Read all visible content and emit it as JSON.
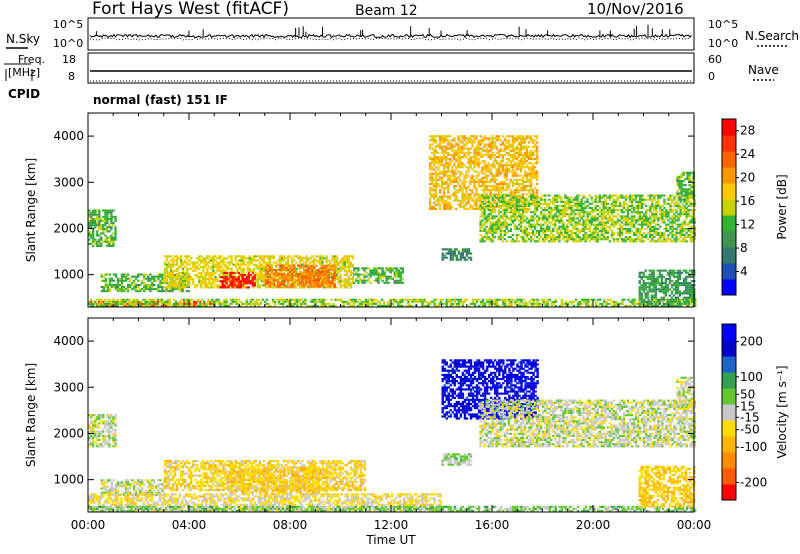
{
  "header": {
    "title": "Fort Hays West (fitACF)",
    "beam": "Beam 12",
    "date": "10/Nov/2016"
  },
  "noise_panel": {
    "left_label": "N.Sky",
    "right_label": "N.Search",
    "left_ticks": [
      "10^5",
      "10^0"
    ],
    "right_ticks": [
      "10^5",
      "10^0"
    ]
  },
  "freq_panel": {
    "left_label_1": "Freq.",
    "left_label_2": "[MHz]",
    "right_label": "Nave",
    "left_ticks": [
      "18",
      "8"
    ],
    "right_ticks": [
      "60",
      "0"
    ],
    "cpid_label": "CPID",
    "cpid_text": "normal (fast) 151 IF"
  },
  "colors": {
    "power_scale": [
      "#0000ff",
      "#1e50b4",
      "#32786e",
      "#3c9650",
      "#32b432",
      "#c8d200",
      "#ffc800",
      "#ff9600",
      "#ff6400",
      "#ff3200",
      "#ff0000"
    ],
    "velocity_scale": [
      "#ff0000",
      "#ff5a00",
      "#ff8c00",
      "#ffb400",
      "#ffdc00",
      "#c8c8c8",
      "#64c832",
      "#32a050",
      "#1e64c8",
      "#0000c8",
      "#0000ff"
    ]
  },
  "chart_data": [
    {
      "type": "heatmap",
      "name": "power",
      "ylabel": "Slant Range [km]",
      "ylim": [
        300,
        4500
      ],
      "y_ticks": [
        "1000",
        "2000",
        "3000",
        "4000"
      ],
      "xlim": [
        "00:00",
        "24:00"
      ],
      "colorbar_label": "Power [dB]",
      "colorbar_ticks": [
        "4",
        "8",
        "12",
        "16",
        "20",
        "24",
        "28"
      ],
      "colorbar_range": [
        0,
        30
      ],
      "regions": [
        {
          "t": [
            0.0,
            1.1
          ],
          "r": [
            1600,
            2400
          ],
          "level": 12
        },
        {
          "t": [
            0.5,
            4.0
          ],
          "r": [
            620,
            1000
          ],
          "level": 12
        },
        {
          "t": [
            3.0,
            10.5
          ],
          "r": [
            700,
            1400
          ],
          "level": 16
        },
        {
          "t": [
            5.2,
            6.6
          ],
          "r": [
            700,
            1050
          ],
          "level": 28
        },
        {
          "t": [
            7.0,
            9.8
          ],
          "r": [
            720,
            1200
          ],
          "level": 22
        },
        {
          "t": [
            10.5,
            12.5
          ],
          "r": [
            800,
            1150
          ],
          "level": 12
        },
        {
          "t": [
            0.0,
            5.0
          ],
          "r": [
            300,
            400
          ],
          "level": 26
        },
        {
          "t": [
            0.0,
            24.0
          ],
          "r": [
            300,
            450
          ],
          "level": 14
        },
        {
          "t": [
            13.5,
            17.8
          ],
          "r": [
            2400,
            4000
          ],
          "level": 18
        },
        {
          "t": [
            15.5,
            24.0
          ],
          "r": [
            1700,
            2700
          ],
          "level": 14
        },
        {
          "t": [
            14.0,
            15.2
          ],
          "r": [
            1300,
            1550
          ],
          "level": 8
        },
        {
          "t": [
            21.8,
            24.0
          ],
          "r": [
            300,
            1100
          ],
          "level": 10
        },
        {
          "t": [
            23.3,
            24.0
          ],
          "r": [
            2600,
            3200
          ],
          "level": 12
        }
      ]
    },
    {
      "type": "heatmap",
      "name": "velocity",
      "ylabel": "Slant Range [km]",
      "ylim": [
        300,
        4500
      ],
      "y_ticks": [
        "1000",
        "2000",
        "3000",
        "4000"
      ],
      "xlim": [
        "00:00",
        "24:00"
      ],
      "x_ticks": [
        "00:00",
        "04:00",
        "08:00",
        "12:00",
        "16:00",
        "20:00",
        "00:00"
      ],
      "xlabel": "Time UT",
      "colorbar_label": "Velocity [m s⁻¹]",
      "colorbar_ticks": [
        "200",
        "100",
        "50",
        "15",
        "-15",
        "-50",
        "-100",
        "-200"
      ],
      "colorbar_range": [
        -250,
        250
      ],
      "regions": [
        {
          "t": [
            0.0,
            1.1
          ],
          "r": [
            1700,
            2400
          ],
          "v": 0
        },
        {
          "t": [
            0.5,
            3.0
          ],
          "r": [
            650,
            1000
          ],
          "v": 0
        },
        {
          "t": [
            3.0,
            11.0
          ],
          "r": [
            750,
            1400
          ],
          "v": -50
        },
        {
          "t": [
            5.5,
            9.5
          ],
          "r": [
            700,
            1250
          ],
          "v": -60
        },
        {
          "t": [
            0.0,
            14.0
          ],
          "r": [
            300,
            700
          ],
          "v": -30
        },
        {
          "t": [
            0.0,
            24.0
          ],
          "r": [
            300,
            420
          ],
          "v": 40
        },
        {
          "t": [
            14.0,
            17.8
          ],
          "r": [
            2300,
            3600
          ],
          "v": 200
        },
        {
          "t": [
            15.5,
            24.0
          ],
          "r": [
            1700,
            2700
          ],
          "v": 0
        },
        {
          "t": [
            14.0,
            15.2
          ],
          "r": [
            1300,
            1550
          ],
          "v": 30
        },
        {
          "t": [
            21.8,
            24.0
          ],
          "r": [
            400,
            1300
          ],
          "v": -70
        },
        {
          "t": [
            23.3,
            24.0
          ],
          "r": [
            2600,
            3200
          ],
          "v": 0
        }
      ]
    }
  ]
}
